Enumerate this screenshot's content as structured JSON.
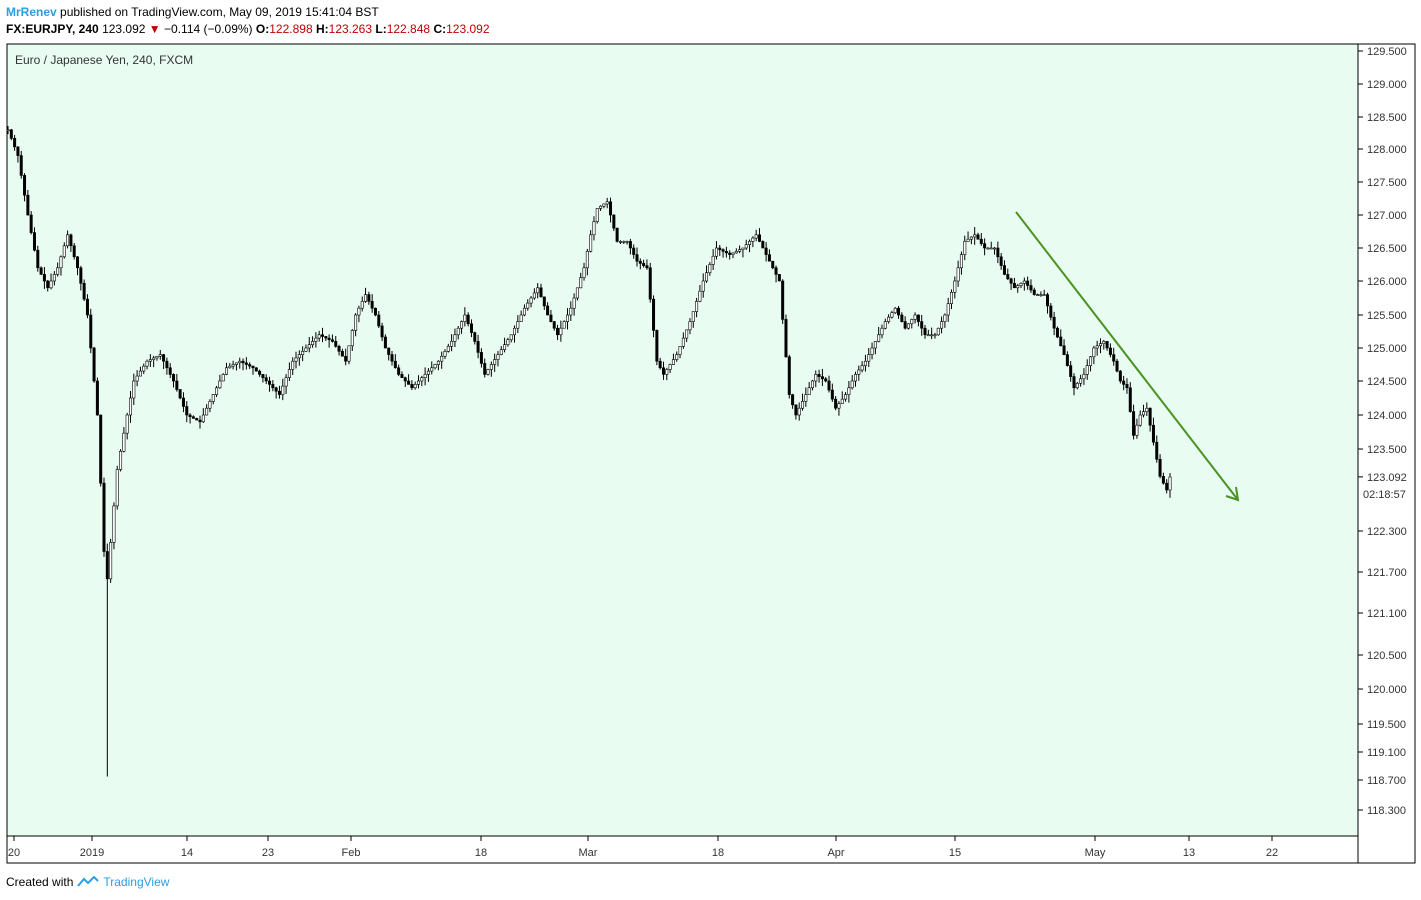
{
  "header": {
    "author": "MrRenev",
    "published": "published on TradingView.com, May 09, 2019 15:41:04 BST",
    "symbol": "FX:EURJPY, 240",
    "last": "123.092",
    "change": "−0.114 (−0.09%)",
    "o_label": "O:",
    "o_value": "122.898",
    "h_label": "H:",
    "h_value": "123.263",
    "l_label": "L:",
    "l_value": "122.848",
    "c_label": "C:",
    "c_value": "123.092"
  },
  "footer": {
    "created_with": "Created with",
    "brand": "TradingView"
  },
  "chart_data": {
    "type": "candlestick",
    "title": "Euro / Japanese Yen, 240, FXCM",
    "background": "#e8fcf2",
    "arrow_color": "#4b9320",
    "price_tag": "123.092",
    "countdown": "02:18:57",
    "y_ticks": [
      "129.500",
      "129.000",
      "128.500",
      "128.000",
      "127.500",
      "127.000",
      "126.500",
      "126.000",
      "125.500",
      "125.000",
      "124.500",
      "124.000",
      "123.500",
      "122.300",
      "121.700",
      "121.100",
      "120.500",
      "120.000",
      "119.500",
      "119.100",
      "118.700",
      "118.300"
    ],
    "x_ticks": [
      "20",
      "2019",
      "14",
      "23",
      "Feb",
      "18",
      "Mar",
      "18",
      "Apr",
      "15",
      "May",
      "13",
      "22"
    ],
    "path_points": [
      [
        0,
        128.3
      ],
      [
        3,
        127.9
      ],
      [
        6,
        127.0
      ],
      [
        9,
        126.2
      ],
      [
        12,
        125.9
      ],
      [
        15,
        126.2
      ],
      [
        18,
        126.7
      ],
      [
        21,
        126.2
      ],
      [
        24,
        125.5
      ],
      [
        27,
        124.0
      ],
      [
        29,
        122.0
      ],
      [
        30,
        121.6
      ],
      [
        33,
        123.2
      ],
      [
        36,
        124.0
      ],
      [
        38,
        124.5
      ],
      [
        42,
        124.8
      ],
      [
        46,
        124.9
      ],
      [
        50,
        124.5
      ],
      [
        54,
        124.0
      ],
      [
        58,
        123.9
      ],
      [
        62,
        124.3
      ],
      [
        66,
        124.7
      ],
      [
        70,
        124.8
      ],
      [
        74,
        124.7
      ],
      [
        78,
        124.5
      ],
      [
        82,
        124.3
      ],
      [
        86,
        124.8
      ],
      [
        90,
        125.0
      ],
      [
        94,
        125.2
      ],
      [
        98,
        125.1
      ],
      [
        102,
        124.8
      ],
      [
        105,
        125.5
      ],
      [
        108,
        125.8
      ],
      [
        111,
        125.5
      ],
      [
        114,
        125.0
      ],
      [
        118,
        124.6
      ],
      [
        122,
        124.4
      ],
      [
        126,
        124.6
      ],
      [
        130,
        124.8
      ],
      [
        134,
        125.1
      ],
      [
        138,
        125.5
      ],
      [
        141,
        125.1
      ],
      [
        144,
        124.6
      ],
      [
        148,
        124.9
      ],
      [
        152,
        125.2
      ],
      [
        156,
        125.6
      ],
      [
        160,
        125.9
      ],
      [
        163,
        125.5
      ],
      [
        166,
        125.2
      ],
      [
        170,
        125.6
      ],
      [
        174,
        126.2
      ],
      [
        176,
        126.7
      ],
      [
        178,
        127.1
      ],
      [
        181,
        127.2
      ],
      [
        184,
        126.6
      ],
      [
        187,
        126.6
      ],
      [
        190,
        126.3
      ],
      [
        193,
        126.2
      ],
      [
        196,
        124.8
      ],
      [
        198,
        124.6
      ],
      [
        202,
        124.9
      ],
      [
        206,
        125.4
      ],
      [
        210,
        126.0
      ],
      [
        214,
        126.5
      ],
      [
        218,
        126.4
      ],
      [
        222,
        126.5
      ],
      [
        226,
        126.7
      ],
      [
        230,
        126.3
      ],
      [
        233,
        126.0
      ],
      [
        236,
        124.3
      ],
      [
        238,
        124.0
      ],
      [
        241,
        124.3
      ],
      [
        244,
        124.6
      ],
      [
        247,
        124.5
      ],
      [
        250,
        124.1
      ],
      [
        253,
        124.3
      ],
      [
        256,
        124.6
      ],
      [
        259,
        124.8
      ],
      [
        262,
        125.1
      ],
      [
        265,
        125.4
      ],
      [
        268,
        125.6
      ],
      [
        271,
        125.3
      ],
      [
        274,
        125.5
      ],
      [
        277,
        125.2
      ],
      [
        280,
        125.2
      ],
      [
        283,
        125.5
      ],
      [
        286,
        126.0
      ],
      [
        289,
        126.6
      ],
      [
        292,
        126.7
      ],
      [
        295,
        126.5
      ],
      [
        298,
        126.5
      ],
      [
        301,
        126.1
      ],
      [
        304,
        125.9
      ],
      [
        307,
        126.0
      ],
      [
        310,
        125.8
      ],
      [
        313,
        125.8
      ],
      [
        316,
        125.3
      ],
      [
        319,
        124.9
      ],
      [
        322,
        124.4
      ],
      [
        325,
        124.6
      ],
      [
        328,
        125.0
      ],
      [
        331,
        125.1
      ],
      [
        334,
        124.8
      ],
      [
        336,
        124.5
      ],
      [
        338,
        124.4
      ],
      [
        340,
        123.7
      ],
      [
        342,
        124.0
      ],
      [
        344,
        124.1
      ],
      [
        346,
        123.6
      ],
      [
        348,
        123.1
      ],
      [
        350,
        122.9
      ],
      [
        351,
        123.09
      ]
    ],
    "arrow": {
      "from": [
        1016,
        212
      ],
      "to": [
        1238,
        500
      ]
    }
  }
}
